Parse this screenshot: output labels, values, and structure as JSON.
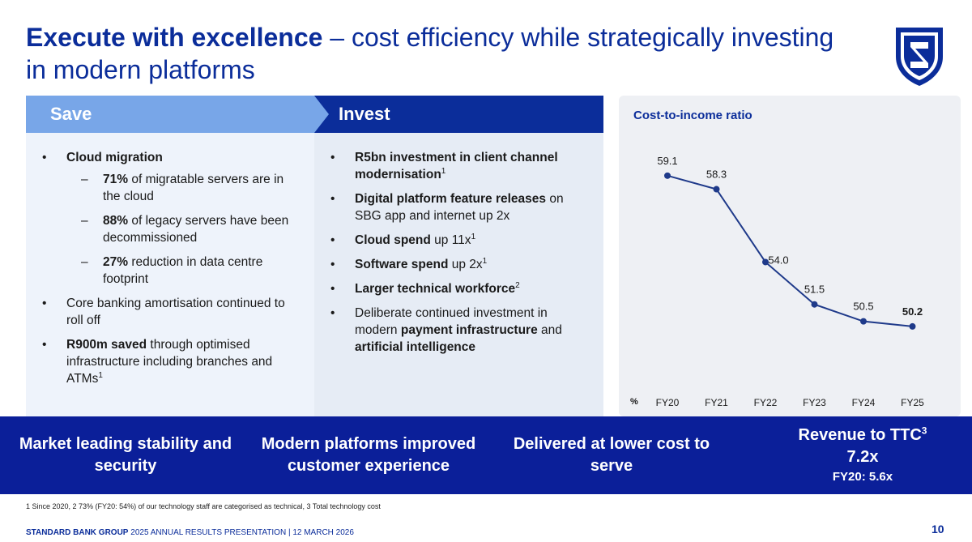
{
  "title": {
    "bold": "Execute with excellence",
    "rest": " – cost efficiency while strategically investing in modern platforms"
  },
  "save": {
    "header": "Save",
    "items": [
      {
        "bold": "Cloud migration",
        "text": "",
        "sup": "",
        "sub": [
          {
            "bold": "71%",
            "text": " of migratable servers are in the cloud"
          },
          {
            "bold": "88%",
            "text": " of legacy servers have been decommissioned"
          },
          {
            "bold": "27%",
            "text": " reduction in data centre footprint"
          }
        ]
      },
      {
        "bold": "",
        "text": "Core banking amortisation continued to roll off",
        "sup": ""
      },
      {
        "bold": "R900m saved",
        "text": " through optimised infrastructure including branches and ATMs",
        "sup": "1"
      }
    ]
  },
  "invest": {
    "header": "Invest",
    "items": [
      {
        "bold": "R5bn investment in client channel modernisation",
        "text": "",
        "sup": "1"
      },
      {
        "bold": "Digital platform feature releases",
        "text": " on SBG app and internet up 2x",
        "sup": ""
      },
      {
        "bold": "Cloud spend",
        "text": " up 11x",
        "sup": "1"
      },
      {
        "bold": "Software spend",
        "text": " up 2x",
        "sup": "1"
      },
      {
        "bold": "Larger technical workforce",
        "text": "",
        "sup": "2"
      },
      {
        "pre": "Deliberate continued investment in modern ",
        "bold": "payment infrastructure",
        "mid": " and ",
        "bold2": "artificial intelligence"
      }
    ]
  },
  "chart_data": {
    "type": "line",
    "title": "Cost-to-income ratio",
    "unit_label": "%",
    "categories": [
      "FY20",
      "FY21",
      "FY22",
      "FY23",
      "FY24",
      "FY25"
    ],
    "values": [
      59.1,
      58.3,
      54.0,
      51.5,
      50.5,
      50.2
    ],
    "labels": [
      "59.1",
      "58.3",
      "54.0",
      "51.5",
      "50.5",
      "50.2"
    ],
    "ylim": [
      49.0,
      60.0
    ]
  },
  "banner": {
    "item1": "Market leading stability and security",
    "item2": "Modern platforms improved customer experience",
    "item3": "Delivered at lower cost to serve",
    "item4_title": "Revenue to TTC",
    "item4_sup": "3",
    "item4_value": "7.2x",
    "item4_sub": "FY20: 5.6x"
  },
  "footnote": "1 Since 2020, 2 73% (FY20: 54%) of our technology staff are categorised as technical, 3 Total technology cost",
  "footer": {
    "brand": "STANDARD BANK GROUP",
    "rest": " 2025 ANNUAL RESULTS PRESENTATION | 12 MARCH 2026"
  },
  "page_number": "10",
  "colors": {
    "primary": "#0b2d9a",
    "light": "#78a6e8",
    "banner": "#0b1f99"
  }
}
